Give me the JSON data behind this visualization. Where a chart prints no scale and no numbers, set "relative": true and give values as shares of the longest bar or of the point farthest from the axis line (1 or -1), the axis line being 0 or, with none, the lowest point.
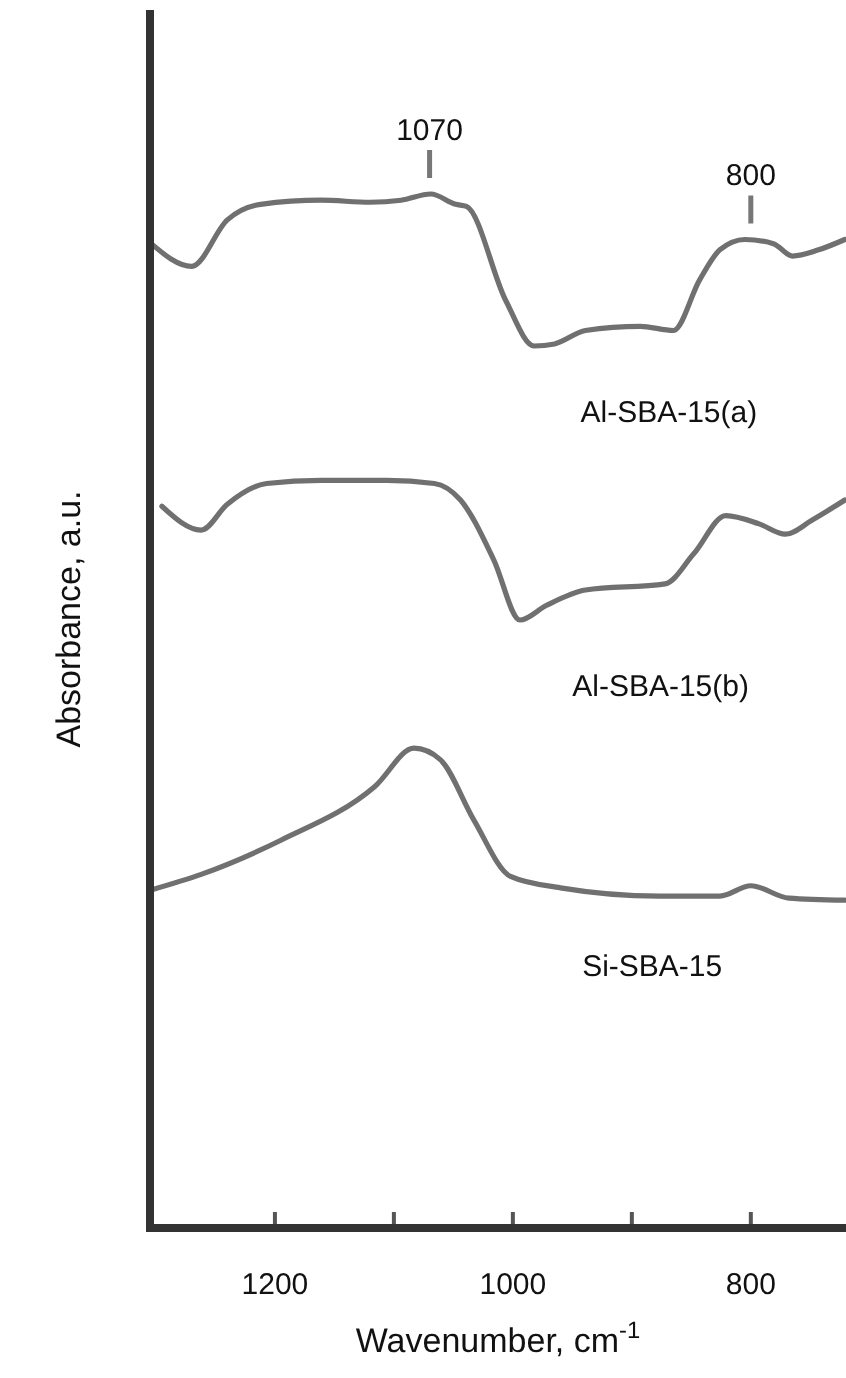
{
  "chart_data": {
    "type": "line",
    "relative": true,
    "xlabel": "Wavenumber, cm$^{-1}$",
    "ylabel": "Absorbance, a.u.",
    "xlim": [
      1305,
      720
    ],
    "xticks": [
      1200,
      {
        "value": 1100,
        "label": null
      },
      1000,
      {
        "value": 900,
        "label": null
      },
      800
    ],
    "grid": false,
    "marker": "none",
    "line_style": "solid",
    "tick_labels": "x",
    "series": [
      {
        "name": "Al-SBA-15(a)",
        "color": "#707070",
        "x": [
          1304,
          1270,
          1240,
          1212,
          1161,
          1120,
          1094,
          1069,
          1048,
          1039,
          1006,
          982,
          965,
          939,
          893,
          865,
          843,
          826,
          805,
          781,
          765,
          743,
          721
        ],
        "values": [
          0.952,
          0.93,
          0.975,
          0.99,
          0.994,
          0.992,
          0.994,
          1.0,
          0.99,
          0.988,
          0.897,
          0.853,
          0.855,
          0.868,
          0.872,
          0.868,
          0.917,
          0.946,
          0.956,
          0.952,
          0.94,
          0.946,
          0.956
        ]
      },
      {
        "name": "Al-SBA-15(b)",
        "color": "#707070",
        "x": [
          1295,
          1262,
          1240,
          1207,
          1161,
          1106,
          1066,
          1044,
          1016,
          994,
          972,
          939,
          872,
          848,
          821,
          793,
          771,
          748,
          721
        ],
        "values": [
          0.698,
          0.675,
          0.7,
          0.72,
          0.723,
          0.723,
          0.72,
          0.704,
          0.646,
          0.588,
          0.602,
          0.617,
          0.623,
          0.652,
          0.689,
          0.681,
          0.671,
          0.685,
          0.704
        ]
      },
      {
        "name": "Si-SBA-15",
        "color": "#707070",
        "x": [
          1304,
          1262,
          1195,
          1116,
          1083,
          1061,
          1033,
          1002,
          960,
          877,
          826,
          800,
          768,
          721
        ],
        "values": [
          0.327,
          0.342,
          0.375,
          0.427,
          0.464,
          0.453,
          0.395,
          0.34,
          0.329,
          0.321,
          0.321,
          0.331,
          0.319,
          0.317
        ]
      }
    ],
    "annotations": [
      {
        "text": "1070",
        "x": 1070,
        "y": 1.0
      },
      {
        "text": "800",
        "x": 800,
        "y": 0.956
      }
    ]
  }
}
